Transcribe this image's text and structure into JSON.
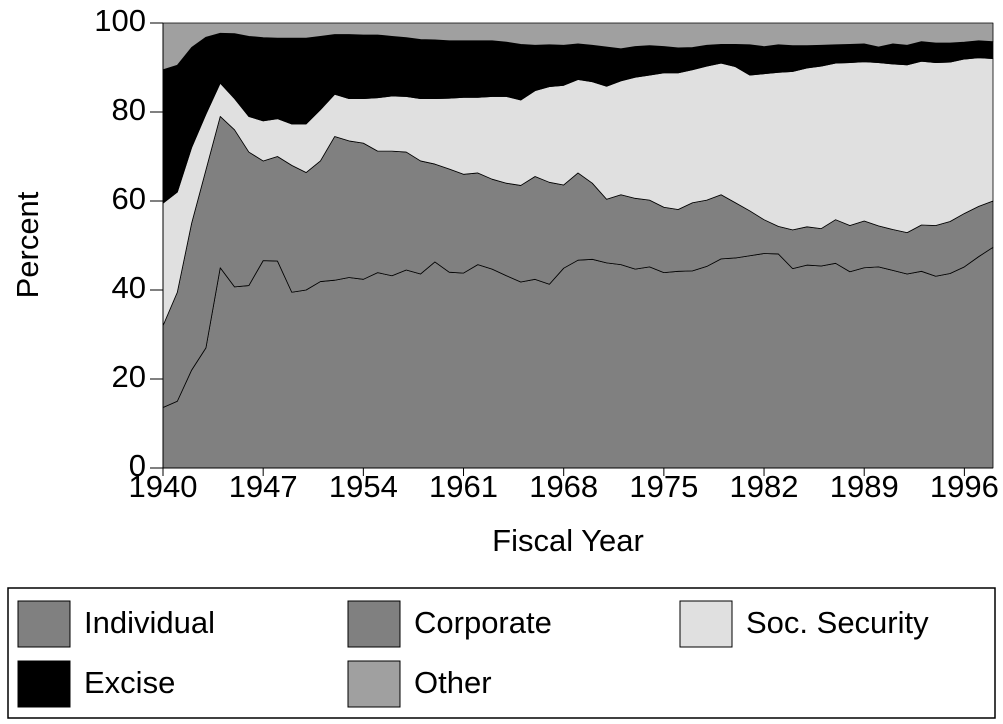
{
  "chart_data": {
    "type": "stacked_area",
    "x_label": "Fiscal Year",
    "y_label": "Percent",
    "x": [
      1940,
      1941,
      1942,
      1943,
      1944,
      1945,
      1946,
      1947,
      1948,
      1949,
      1950,
      1951,
      1952,
      1953,
      1954,
      1955,
      1956,
      1957,
      1958,
      1959,
      1960,
      1961,
      1962,
      1963,
      1964,
      1965,
      1966,
      1967,
      1968,
      1969,
      1970,
      1971,
      1972,
      1973,
      1974,
      1975,
      1976,
      1977,
      1978,
      1979,
      1980,
      1981,
      1982,
      1983,
      1984,
      1985,
      1986,
      1987,
      1988,
      1989,
      1990,
      1991,
      1992,
      1993,
      1994,
      1995,
      1996,
      1997,
      1998
    ],
    "xlim": [
      1940,
      1998
    ],
    "xticks": [
      1940,
      1947,
      1954,
      1961,
      1968,
      1975,
      1982,
      1989,
      1996
    ],
    "ylim": [
      0,
      100
    ],
    "yticks": [
      0,
      20,
      40,
      60,
      80,
      100
    ],
    "series": [
      {
        "name": "Individual",
        "color": "#808080",
        "values": [
          13.6,
          15,
          22,
          27,
          45,
          40.7,
          41,
          46.6,
          46.5,
          39.5,
          40,
          41.9,
          42.2,
          42.8,
          42.4,
          43.9,
          43.2,
          44.5,
          43.6,
          46.3,
          44,
          43.8,
          45.7,
          44.7,
          43.2,
          41.8,
          42.4,
          41.3,
          44.9,
          46.7,
          46.9,
          46.1,
          45.7,
          44.7,
          45.2,
          43.9,
          44.2,
          44.3,
          45.3,
          47,
          47.2,
          47.7,
          48.2,
          48.1,
          44.8,
          45.6,
          45.4,
          46,
          44.1,
          45,
          45.2,
          44.4,
          43.6,
          44.2,
          43.1,
          43.7,
          45.2,
          47.5,
          49.6
        ]
      },
      {
        "name": "Corporate",
        "color": "#808080",
        "values": [
          18.4,
          24.5,
          33,
          40,
          34,
          35.3,
          30,
          22.4,
          23.5,
          28.5,
          26.4,
          27.1,
          32.3,
          30.7,
          30.6,
          27.3,
          28,
          26.5,
          25.4,
          22,
          23.2,
          22.2,
          20.6,
          20.2,
          20.8,
          21.7,
          23.1,
          22.9,
          18.7,
          19.6,
          17.1,
          14.3,
          15.7,
          15.9,
          15,
          14.7,
          13.9,
          15.3,
          14.9,
          14.4,
          12.4,
          10.1,
          7.6,
          6.2,
          8.7,
          8.6,
          8.4,
          9.8,
          10.4,
          10.5,
          9.2,
          9.2,
          9.3,
          10.4,
          11.4,
          11.7,
          12,
          11.3,
          10.4
        ]
      },
      {
        "name": "Soc. Security",
        "color": "#e0e0e0",
        "values": [
          27.5,
          22.5,
          17,
          12.5,
          7.5,
          7,
          8,
          9,
          8.5,
          9.3,
          10.9,
          11.5,
          9.5,
          9.5,
          10,
          12,
          12.4,
          12.5,
          14,
          14.7,
          15.9,
          17.3,
          17,
          18.6,
          19.5,
          19.2,
          19.3,
          21.5,
          22.4,
          21,
          22.8,
          25.4,
          25.6,
          27.2,
          28.1,
          30.2,
          30.7,
          29.9,
          30.1,
          29.6,
          30.6,
          30.5,
          32.8,
          34.6,
          35.6,
          35.7,
          36.5,
          35.2,
          36.6,
          35.8,
          36.7,
          37.2,
          37.7,
          36.8,
          36.6,
          35.8,
          34.7,
          33.4,
          32
        ]
      },
      {
        "name": "Excise",
        "color": "#000000",
        "values": [
          30,
          28.5,
          22.5,
          17.3,
          11.2,
          14.6,
          18,
          18.7,
          18.1,
          19.3,
          19.3,
          16.5,
          13.4,
          14.4,
          14.3,
          14.1,
          13.4,
          13.2,
          13.3,
          13.2,
          12.9,
          12.7,
          12.7,
          12.5,
          12.2,
          12.5,
          10.2,
          9.4,
          9,
          8,
          8.2,
          8.8,
          7.2,
          6.9,
          6.6,
          5.9,
          5.6,
          5,
          4.7,
          4.2,
          5,
          6.8,
          6.1,
          6.2,
          5.8,
          5,
          4.7,
          4.1,
          4.1,
          4,
          3.5,
          4.5,
          4.4,
          4.4,
          4.4,
          4.3,
          3.8,
          3.8,
          3.8
        ]
      },
      {
        "name": "Other",
        "color": "#a0a0a0",
        "values": [
          10.5,
          9.5,
          5.5,
          3.2,
          2.3,
          2.4,
          3,
          3.3,
          3.4,
          3.4,
          3.4,
          3,
          2.6,
          2.6,
          2.7,
          2.7,
          3,
          3.3,
          3.7,
          3.8,
          4,
          4,
          4,
          4,
          4.3,
          4.8,
          5,
          4.9,
          5,
          4.7,
          5,
          5.4,
          5.8,
          5.3,
          5.1,
          5.3,
          5.6,
          5.5,
          5,
          4.8,
          4.8,
          4.9,
          5.3,
          4.9,
          5.1,
          5.1,
          5,
          4.9,
          4.8,
          4.7,
          5.4,
          4.7,
          5,
          4.2,
          4.5,
          4.5,
          4.3,
          4,
          4.2
        ]
      }
    ]
  }
}
